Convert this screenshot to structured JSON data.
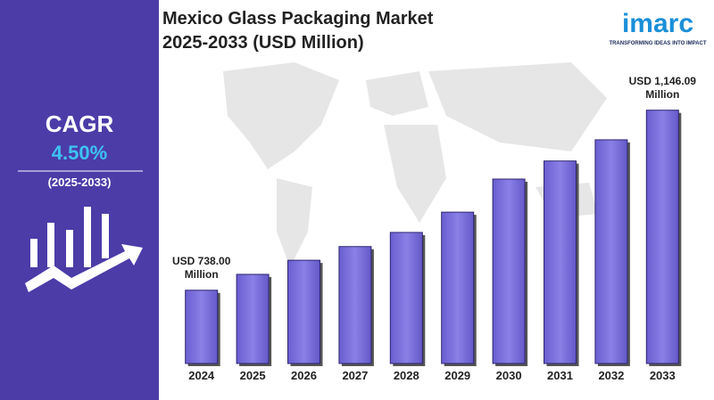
{
  "header": {
    "title_line1": "Mexico Glass Packaging Market",
    "title_line2": "2025-2033 (USD Million)"
  },
  "logo": {
    "name": "imarc",
    "tagline": "TRANSFORMING IDEAS INTO IMPACT"
  },
  "cagr": {
    "label": "CAGR",
    "value": "4.50%",
    "period": "(2025-2033)"
  },
  "chart_data": {
    "type": "bar",
    "categories": [
      "2024",
      "2025",
      "2026",
      "2027",
      "2028",
      "2029",
      "2030",
      "2031",
      "2032",
      "2033"
    ],
    "values": [
      738.0,
      774,
      806,
      837,
      869,
      915,
      990,
      1031,
      1079,
      1146.09
    ],
    "value_labels": [
      "USD 738.00 Million",
      null,
      null,
      null,
      null,
      null,
      null,
      null,
      null,
      "USD 1,146.09 Million"
    ],
    "color": "#7b6fdc",
    "ylim": [
      572,
      1200
    ]
  }
}
